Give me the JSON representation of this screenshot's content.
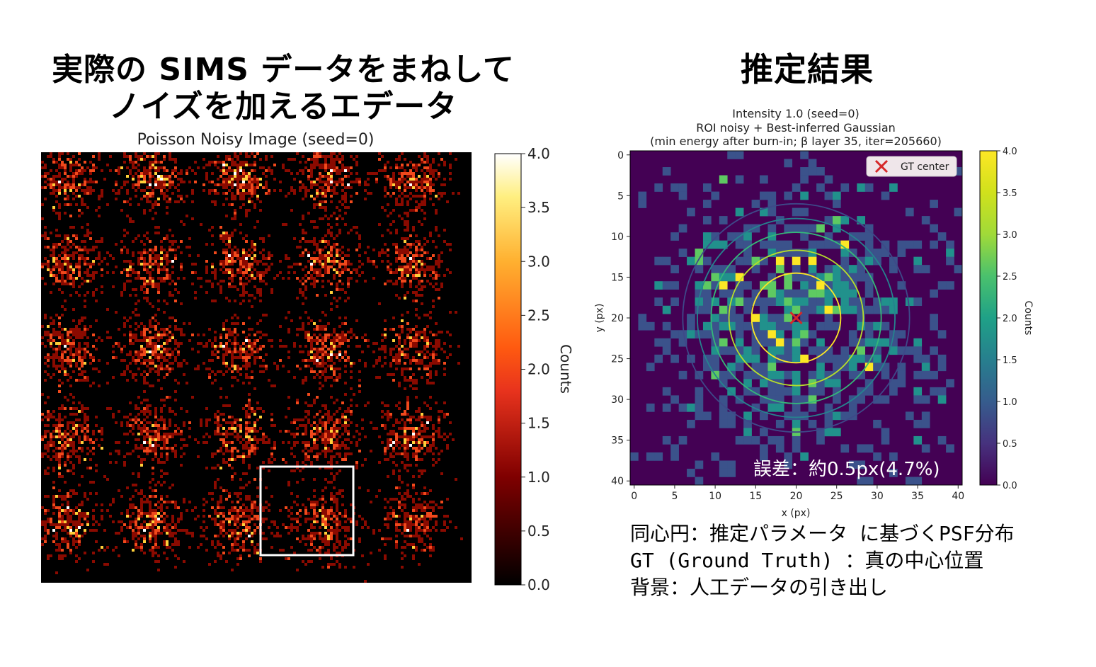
{
  "left_heading": {
    "line1": "実際の SIMS データをまねして",
    "line2": "ノイズを加えるエデータ"
  },
  "right_heading": "推定結果",
  "notes": [
    "同心円：推定パラメータ に基づくPSF分布",
    "GT (Ground Truth) ：真の中心位置",
    "背景：人工データの引き出し"
  ],
  "chart_data": [
    {
      "type": "heatmap",
      "title": "Poisson Noisy Image (seed=0)",
      "colormap": "afmhot",
      "grid": "5x5 spots",
      "colorbar": {
        "label": "Counts",
        "range": [
          0.0,
          4.0
        ],
        "ticks": [
          "0.0",
          "0.5",
          "1.0",
          "1.5",
          "2.0",
          "2.5",
          "3.0",
          "3.5",
          "4.0"
        ]
      },
      "highlight_box": "white square around spot at row 5, column 4",
      "highlight_color": "#ffffff"
    },
    {
      "type": "heatmap",
      "title_lines": [
        "Intensity 1.0 (seed=0)",
        "ROI noisy + Best-inferred Gaussian",
        "(min energy after burn-in; β layer 35, iter=205660)"
      ],
      "colormap": "viridis",
      "xlabel": "x (px)",
      "ylabel": "y (px)",
      "xlim": [
        0,
        40
      ],
      "ylim": [
        40,
        0
      ],
      "x_ticks": [
        "0",
        "5",
        "10",
        "15",
        "20",
        "25",
        "30",
        "35",
        "40"
      ],
      "y_ticks": [
        "0",
        "5",
        "10",
        "15",
        "20",
        "25",
        "30",
        "35",
        "40"
      ],
      "colorbar": {
        "label": "Counts",
        "range": [
          0.0,
          4.0
        ],
        "ticks": [
          "0.0",
          "0.5",
          "1.0",
          "1.5",
          "2.0",
          "2.5",
          "3.0",
          "3.5",
          "4.0"
        ]
      },
      "gt_center": {
        "x": 20,
        "y": 20,
        "marker": "x",
        "color": "#d62728"
      },
      "legend": {
        "label": "GT center",
        "placement": "top-right"
      },
      "contour_levels": [
        {
          "radius": 5.5,
          "color": "#fde725"
        },
        {
          "radius": 8.3,
          "color": "#b5de2b"
        },
        {
          "radius": 10.5,
          "color": "#35b779"
        },
        {
          "radius": 12.2,
          "color": "#26828e"
        },
        {
          "radius": 14.0,
          "color": "#3e4989"
        }
      ],
      "annotation": "誤差：約0.5px(4.7%)"
    }
  ]
}
